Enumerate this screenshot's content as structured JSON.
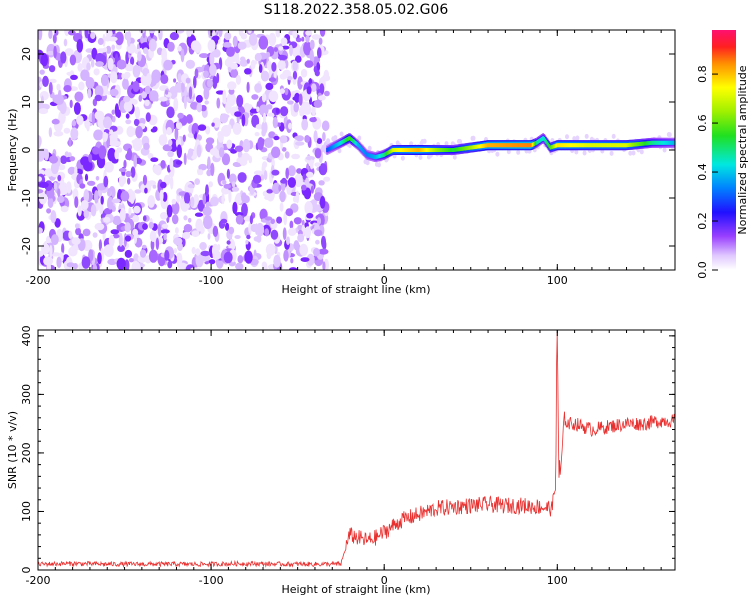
{
  "title": "S118.2022.358.05.02.G06",
  "chart_data": [
    {
      "type": "heatmap",
      "xlabel": "Height of straight line (km)",
      "ylabel": "Frequency (Hz)",
      "xlim": [
        -200,
        168
      ],
      "ylim": [
        -25,
        25
      ],
      "x_ticks": [
        -200,
        -100,
        0,
        100
      ],
      "y_ticks": [
        -20,
        -10,
        0,
        10,
        20
      ],
      "noise_region_x": [
        -200,
        -33
      ],
      "signal_trace": {
        "x": [
          -33,
          -25,
          -20,
          -15,
          -10,
          -5,
          0,
          5,
          20,
          40,
          60,
          85,
          88,
          92,
          96,
          100,
          120,
          140,
          155,
          168
        ],
        "y": [
          0,
          1.5,
          2.5,
          1,
          -1,
          -1.5,
          -1,
          0,
          0,
          0,
          1,
          1,
          1.5,
          2.5,
          0.5,
          1,
          1,
          1,
          1.5,
          1.5
        ],
        "amplitude": [
          0.3,
          0.45,
          0.6,
          0.4,
          0.35,
          0.4,
          0.5,
          0.75,
          0.85,
          0.55,
          0.85,
          0.9,
          0.5,
          0.45,
          0.6,
          0.8,
          0.75,
          0.75,
          0.5,
          0.4
        ]
      },
      "colorbar": {
        "label": "Normalized spectral amplitude",
        "range": [
          0,
          0.98
        ],
        "ticks": [
          0.0,
          0.2,
          0.4,
          0.6,
          0.8
        ]
      },
      "grid": false
    },
    {
      "type": "line",
      "xlabel": "Height of straight line (km)",
      "ylabel": "SNR (10 * v/v)",
      "xlim": [
        -200,
        168
      ],
      "ylim": [
        0,
        410
      ],
      "x_ticks": [
        -200,
        -100,
        0,
        100
      ],
      "y_ticks": [
        0,
        100,
        200,
        300,
        400
      ],
      "color": "#e8302f",
      "series": [
        {
          "x": [
            -200,
            -180,
            -160,
            -140,
            -120,
            -100,
            -80,
            -60,
            -40,
            -25,
            -22,
            -20,
            -15,
            -10,
            -5,
            0,
            10,
            20,
            30,
            40,
            50,
            60,
            70,
            80,
            90,
            97,
            99,
            100,
            101,
            102,
            104,
            106,
            110,
            120,
            130,
            140,
            150,
            160,
            168
          ],
          "y": [
            10,
            11,
            10,
            10,
            10,
            10,
            11,
            10,
            10,
            10,
            40,
            60,
            55,
            50,
            55,
            65,
            85,
            95,
            105,
            108,
            110,
            112,
            110,
            110,
            108,
            105,
            150,
            380,
            120,
            170,
            260,
            250,
            250,
            240,
            245,
            250,
            250,
            255,
            255
          ]
        }
      ],
      "grid": false
    }
  ]
}
